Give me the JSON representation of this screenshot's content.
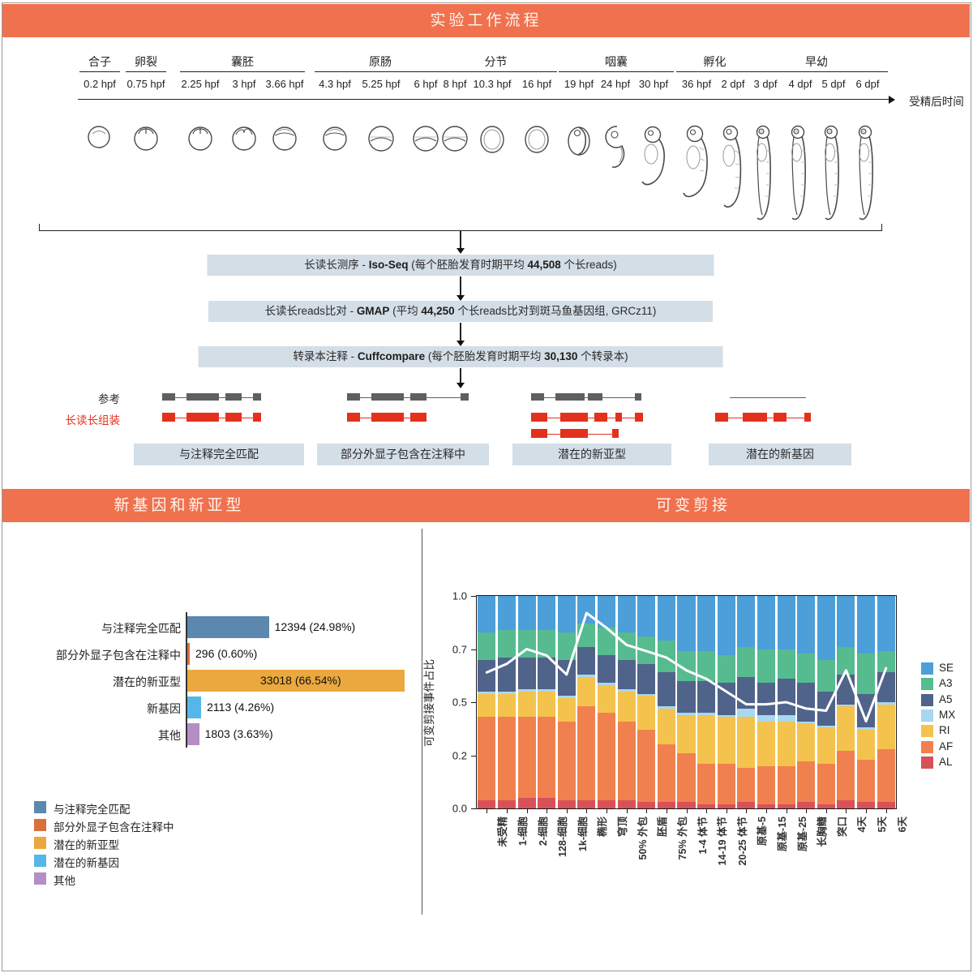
{
  "banners": {
    "workflow_title": "实验工作流程",
    "novel_title": "新基因和新亚型",
    "splicing_title": "可变剪接",
    "banner_color": "#F0714E"
  },
  "timeline": {
    "axis_label": "受精后时间",
    "stages": [
      {
        "name": "合子",
        "span": [
          0,
          0
        ]
      },
      {
        "name": "卵裂",
        "span": [
          1,
          1
        ]
      },
      {
        "name": "囊胚",
        "span": [
          2,
          4
        ]
      },
      {
        "name": "原肠",
        "span": [
          5,
          7
        ]
      },
      {
        "name": "分节",
        "span": [
          8,
          10
        ]
      },
      {
        "name": "咽囊",
        "span": [
          11,
          13
        ]
      },
      {
        "name": "孵化",
        "span": [
          14,
          15
        ]
      },
      {
        "name": "早幼",
        "span": [
          16,
          19
        ]
      }
    ],
    "timepoints": [
      "0.2 hpf",
      "0.75 hpf",
      "2.25 hpf",
      "3 hpf",
      "3.66 hpf",
      "4.3 hpf",
      "5.25 hpf",
      "6 hpf",
      "8 hpf",
      "10.3 hpf",
      "16 hpf",
      "19 hpf",
      "24 hpf",
      "30 hpf",
      "36 hpf",
      "2 dpf",
      "3 dpf",
      "4 dpf",
      "5 dpf",
      "6 dpf"
    ]
  },
  "pipeline": {
    "steps": [
      {
        "pre": "长读长测序 - ",
        "tool": "Iso-Seq",
        "mid": " (每个胚胎发育时期平均 ",
        "value": "44,508",
        "post": " 个长reads)"
      },
      {
        "pre": "长读长reads比对 - ",
        "tool": "GMAP",
        "mid": " (平均 ",
        "value": "44,250",
        "post": " 个长reads比对到斑马鱼基因组, GRCz11)"
      },
      {
        "pre": "转录本注释 - ",
        "tool": "Cuffcompare",
        "mid": " (每个胚胎发育时期平均 ",
        "value": "30,130",
        "post": " 个转录本)"
      }
    ]
  },
  "gene_models": {
    "ref_label": "参考",
    "read_label": "长读长组装",
    "ref_color": "#5f5f5f",
    "read_color": "#e3311d",
    "categories": [
      "与注释完全匹配",
      "部分外显子包含在注释中",
      "潜在的新亚型",
      "潜在的新基因"
    ]
  },
  "chart_data": [
    {
      "type": "bar",
      "orientation": "horizontal",
      "title": "新基因和新亚型",
      "categories": [
        "与注释完全匹配",
        "部分外显子包含在注释中",
        "潜在的新亚型",
        "新基因",
        "其他"
      ],
      "values": [
        12394,
        296,
        33018,
        2113,
        1803
      ],
      "value_labels": [
        "12394 (24.98%)",
        "296 (0.60%)",
        "33018 (66.54%)",
        "2113 (4.26%)",
        "1803 (3.63%)"
      ],
      "colors": [
        "#5C87AE",
        "#D9713B",
        "#EAA83E",
        "#55B7E8",
        "#B48EC5"
      ],
      "xlim": [
        0,
        33018
      ],
      "legend": [
        "与注释完全匹配",
        "部分外显子包含在注释中",
        "潜在的新亚型",
        "潜在的新基因",
        "其他"
      ],
      "legend_position": "bottom-left"
    },
    {
      "type": "bar",
      "stacked": true,
      "title": "可变剪接",
      "ylabel": "可变剪接事件占比",
      "ylim": [
        0,
        1
      ],
      "ytick_labels": [
        "1.0",
        "0.7",
        "0.5",
        "0.2",
        "0.0"
      ],
      "grid": false,
      "legend_position": "right",
      "categories": [
        "未受精",
        "1-细胞",
        "2-细胞",
        "128-细胞",
        "1k-细胞",
        "椭形",
        "穹顶",
        "50% 外包",
        "胚盾",
        "75% 外包",
        "1-4 体节",
        "14-19 体节",
        "20-25 体节",
        "原基-5",
        "原基-15",
        "原基-25",
        "长胸鳍",
        "突口",
        "4天",
        "5天",
        "6天"
      ],
      "series": [
        {
          "name": "AL",
          "color": "#D85159",
          "values": [
            0.04,
            0.04,
            0.05,
            0.05,
            0.04,
            0.04,
            0.04,
            0.04,
            0.03,
            0.03,
            0.03,
            0.02,
            0.02,
            0.03,
            0.02,
            0.02,
            0.03,
            0.02,
            0.04,
            0.03,
            0.03
          ]
        },
        {
          "name": "AF",
          "color": "#F0814F",
          "values": [
            0.39,
            0.39,
            0.38,
            0.38,
            0.37,
            0.44,
            0.41,
            0.37,
            0.34,
            0.27,
            0.23,
            0.19,
            0.19,
            0.16,
            0.18,
            0.18,
            0.19,
            0.19,
            0.23,
            0.2,
            0.25
          ]
        },
        {
          "name": "RI",
          "color": "#F3C34D",
          "values": [
            0.11,
            0.11,
            0.12,
            0.12,
            0.11,
            0.14,
            0.13,
            0.14,
            0.16,
            0.17,
            0.18,
            0.23,
            0.22,
            0.24,
            0.21,
            0.21,
            0.18,
            0.17,
            0.21,
            0.14,
            0.21
          ]
        },
        {
          "name": "MX",
          "color": "#A8D7F0",
          "values": [
            0.01,
            0.01,
            0.01,
            0.01,
            0.01,
            0.01,
            0.01,
            0.01,
            0.01,
            0.01,
            0.01,
            0.01,
            0.01,
            0.04,
            0.03,
            0.03,
            0.01,
            0.01,
            0.01,
            0.01,
            0.01
          ]
        },
        {
          "name": "A5",
          "color": "#50638A",
          "values": [
            0.15,
            0.16,
            0.15,
            0.15,
            0.17,
            0.13,
            0.13,
            0.14,
            0.14,
            0.16,
            0.15,
            0.15,
            0.15,
            0.15,
            0.15,
            0.17,
            0.18,
            0.16,
            0.14,
            0.16,
            0.14
          ]
        },
        {
          "name": "A3",
          "color": "#57BB90",
          "values": [
            0.13,
            0.13,
            0.13,
            0.13,
            0.13,
            0.11,
            0.13,
            0.13,
            0.13,
            0.15,
            0.14,
            0.14,
            0.13,
            0.14,
            0.16,
            0.14,
            0.14,
            0.15,
            0.13,
            0.19,
            0.1
          ]
        },
        {
          "name": "SE",
          "color": "#4C9FD9",
          "values": [
            0.17,
            0.16,
            0.16,
            0.16,
            0.17,
            0.13,
            0.15,
            0.17,
            0.19,
            0.21,
            0.26,
            0.26,
            0.28,
            0.24,
            0.25,
            0.25,
            0.27,
            0.3,
            0.24,
            0.27,
            0.26
          ]
        }
      ],
      "line_overlay": {
        "color": "#ffffff",
        "values": [
          0.64,
          0.68,
          0.75,
          0.72,
          0.63,
          0.92,
          0.85,
          0.77,
          0.74,
          0.71,
          0.65,
          0.61,
          0.55,
          0.49,
          0.49,
          0.5,
          0.47,
          0.46,
          0.65,
          0.41,
          0.66
        ]
      },
      "legend_order": [
        "SE",
        "A3",
        "A5",
        "MX",
        "RI",
        "AF",
        "AL"
      ]
    }
  ]
}
